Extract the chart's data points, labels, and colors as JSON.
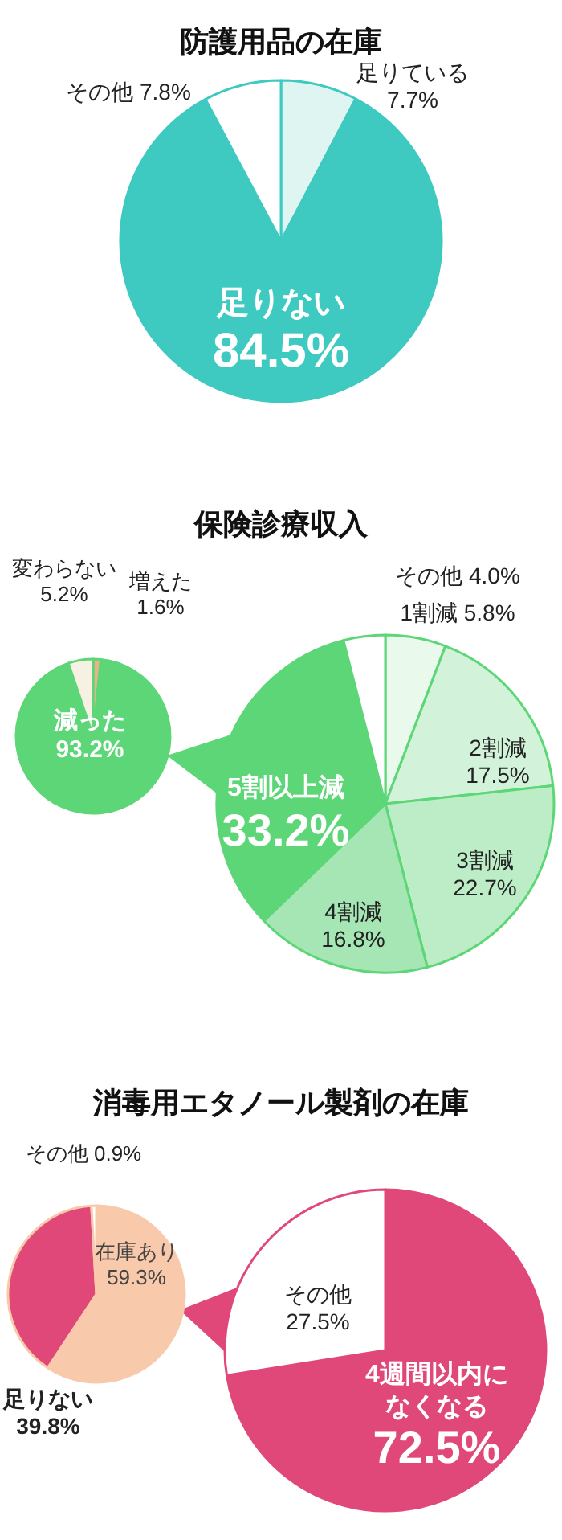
{
  "chart_data": [
    {
      "type": "pie",
      "title": "防護用品の在庫",
      "categories": [
        "足りている",
        "足りない",
        "その他"
      ],
      "values": [
        7.7,
        84.5,
        7.8
      ],
      "colors": [
        "#dff5f2",
        "#3ec9c1",
        "#ffffff"
      ],
      "value_labels": [
        "7.7%",
        "84.5%",
        "7.8%"
      ]
    },
    {
      "type": "pie",
      "categories": [
        "増えた",
        "減った",
        "変わらない"
      ],
      "values": [
        1.6,
        93.2,
        5.2
      ],
      "colors": [
        "#e6b48c",
        "#5cd677",
        "#f6f1e2"
      ],
      "value_labels": [
        "1.6%",
        "93.2%",
        "5.2%"
      ]
    },
    {
      "type": "pie",
      "title": "保険診療収入",
      "categories": [
        "1割減",
        "2割減",
        "3割減",
        "4割減",
        "5割以上減",
        "その他"
      ],
      "values": [
        5.8,
        17.5,
        22.7,
        16.8,
        33.2,
        4.0
      ],
      "colors": [
        "#e9f9ec",
        "#d2f3d9",
        "#bdedc7",
        "#a6e6b4",
        "#5cd677",
        "#ffffff"
      ],
      "value_labels": [
        "5.8%",
        "17.5%",
        "22.7%",
        "16.8%",
        "33.2%",
        "4.0%"
      ]
    },
    {
      "type": "pie",
      "title": "消毒用エタノール製剤の在庫",
      "categories": [
        "在庫あり",
        "足りない",
        "その他"
      ],
      "values": [
        59.3,
        39.8,
        0.9
      ],
      "colors": [
        "#f9c9ab",
        "#df4879",
        "#ffffff"
      ],
      "value_labels": [
        "59.3%",
        "39.8%",
        "0.9%"
      ]
    },
    {
      "type": "pie",
      "categories": [
        "4週間以内になくなる",
        "その他"
      ],
      "values": [
        72.5,
        27.5
      ],
      "colors": [
        "#df4879",
        "#ffffff"
      ],
      "value_labels": [
        "72.5%",
        "27.5%"
      ]
    }
  ]
}
